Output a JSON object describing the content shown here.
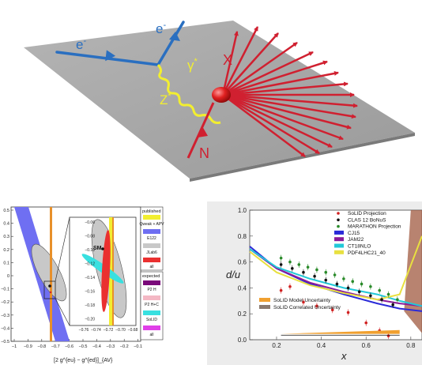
{
  "diagram": {
    "electron_in": "e",
    "electron_out": "e",
    "electron_sup": "-",
    "photon": "γ",
    "photon_sup": "*",
    "zboson": "Z",
    "zboson_sup": "*",
    "hadrons": "X",
    "nucleon": "N",
    "colors": {
      "electron": "#2a6fc0",
      "boson": "#e8e020",
      "hadron": "#c8202a",
      "plane": "#a7a7a7"
    }
  },
  "left_panel": {
    "y_ticks": [
      "0.5",
      "0.4",
      "0.3",
      "0.2",
      "0.1",
      "0",
      "−0.1",
      "−0.2",
      "−0.3",
      "−0.4",
      "−0.5"
    ],
    "x_ticks": [
      "−1",
      "−0.9",
      "−0.8",
      "−0.7",
      "−0.6",
      "−0.5",
      "−0.4",
      "−0.3",
      "−0.2",
      "−0.1"
    ],
    "x_label": "[2 g^{eu} − g^{ed}]_{AV}",
    "inset_y_ticks": [
      "−0.06",
      "−0.08",
      "−0.10",
      "−0.12",
      "−0.14",
      "−0.16",
      "−0.18",
      "−0.20"
    ],
    "inset_x_ticks": [
      "−0.76",
      "−0.74",
      "−0.72",
      "−0.70",
      "−0.68"
    ],
    "sm_label": "SM",
    "legend_published_title": "published",
    "legend_published": [
      {
        "label": "Qweak + APV",
        "color": "#f2ee30"
      },
      {
        "label": "E122",
        "color": "#6f6ff2"
      },
      {
        "label": "JLab6",
        "color": "#c8c8c8"
      },
      {
        "label": "all",
        "color": "#ea3030"
      }
    ],
    "legend_expected_title": "expected",
    "legend_expected": [
      {
        "label": "P2 H",
        "color": "#7a0a7a"
      },
      {
        "label": "P2 H+C",
        "color": "#f4b8c4"
      },
      {
        "label": "SoLID",
        "color": "#38e0e0"
      },
      {
        "label": "all",
        "color": "#e040e8"
      }
    ]
  },
  "chart_data": {
    "type": "line",
    "xlabel": "x",
    "ylabel": "d/u",
    "xlim": [
      0.08,
      0.85
    ],
    "ylim": [
      0.0,
      1.0
    ],
    "y_ticks": [
      "0.0",
      "0.2",
      "0.4",
      "0.6",
      "0.8",
      "1.0"
    ],
    "x_ticks": [
      "0.2",
      "0.4",
      "0.6",
      "0.8"
    ],
    "legend_placement": "top-right",
    "series": [
      {
        "name": "SoLID Projection",
        "kind": "points",
        "color": "#d02020",
        "x": [
          0.22,
          0.26,
          0.32,
          0.38,
          0.45,
          0.52,
          0.6,
          0.66,
          0.7
        ],
        "y": [
          0.38,
          0.41,
          0.29,
          0.26,
          0.23,
          0.21,
          0.13,
          0.07,
          0.03
        ]
      },
      {
        "name": "CLAS 12 BoNuS",
        "kind": "points",
        "color": "#111111",
        "x": [
          0.22,
          0.27,
          0.32,
          0.37,
          0.42,
          0.47,
          0.52,
          0.57,
          0.62,
          0.67,
          0.72
        ],
        "y": [
          0.58,
          0.55,
          0.52,
          0.49,
          0.46,
          0.43,
          0.4,
          0.37,
          0.34,
          0.31,
          0.27
        ]
      },
      {
        "name": "MARATHON Projection",
        "kind": "points",
        "color": "#2a8a2a",
        "x": [
          0.22,
          0.26,
          0.3,
          0.34,
          0.38,
          0.42,
          0.46,
          0.5,
          0.54,
          0.58,
          0.62,
          0.66,
          0.7,
          0.74
        ],
        "y": [
          0.63,
          0.6,
          0.58,
          0.56,
          0.54,
          0.52,
          0.5,
          0.47,
          0.45,
          0.43,
          0.41,
          0.38,
          0.35,
          0.31
        ]
      },
      {
        "name": "CJ15",
        "kind": "line",
        "color": "#2a2ad8",
        "x": [
          0.08,
          0.2,
          0.35,
          0.5,
          0.65,
          0.75,
          0.85
        ],
        "y": [
          0.72,
          0.55,
          0.43,
          0.35,
          0.28,
          0.24,
          0.22
        ]
      },
      {
        "name": "JAM22",
        "kind": "line",
        "color": "#8a1a9a",
        "x": [
          0.08,
          0.2,
          0.35,
          0.5,
          0.65,
          0.75,
          0.85
        ],
        "y": [
          0.7,
          0.55,
          0.44,
          0.37,
          0.31,
          0.28,
          0.26
        ]
      },
      {
        "name": "CT18NLO",
        "kind": "line",
        "color": "#22c8d8",
        "x": [
          0.08,
          0.2,
          0.35,
          0.5,
          0.65,
          0.75,
          0.85
        ],
        "y": [
          0.7,
          0.56,
          0.47,
          0.4,
          0.35,
          0.3,
          0.26
        ]
      },
      {
        "name": "PDF4LHC21_40",
        "kind": "line",
        "color": "#e8e040",
        "x": [
          0.08,
          0.2,
          0.35,
          0.5,
          0.65,
          0.75,
          0.85
        ],
        "y": [
          0.68,
          0.52,
          0.42,
          0.36,
          0.31,
          0.35,
          0.8
        ]
      }
    ],
    "bands": [
      {
        "name": "SoLID Model Uncertainty",
        "color": "#f0a030"
      },
      {
        "name": "SoLID Correlated Uncertainty",
        "color": "#8a7a70"
      }
    ]
  }
}
